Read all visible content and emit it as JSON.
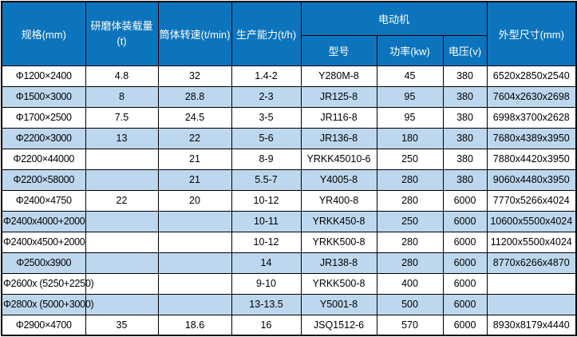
{
  "colors": {
    "header_bg": "#0c74bd",
    "header_text": "#ffffff",
    "alt_row_bg": "#bdd7ee",
    "border": "#000000",
    "body_text": "#000000"
  },
  "table": {
    "header": {
      "spec": "规格(mm)",
      "load": "研磨体装载量\n(t)",
      "speed": "筒体转速(t/min)",
      "capacity": "生产能力(t/h)",
      "motor_group": "电动机",
      "model": "型号",
      "power": "功率(kw)",
      "voltage": "电压(v)",
      "dimensions": "外型尺寸(mm)"
    },
    "rows": [
      {
        "spec": "Φ1200×2400",
        "load": "4.8",
        "speed": "32",
        "capacity": "1.4-2",
        "model": "Y280M-8",
        "power": "45",
        "voltage": "380",
        "dimensions": "6520x2850x2540"
      },
      {
        "spec": "Φ1500×3000",
        "load": "8",
        "speed": "28.8",
        "capacity": "2-3",
        "model": "JR125-8",
        "power": "95",
        "voltage": "380",
        "dimensions": "7604x2630x2698"
      },
      {
        "spec": "Φ1700×2500",
        "load": "7.5",
        "speed": "24.5",
        "capacity": "3-5",
        "model": "JR116-8",
        "power": "95",
        "voltage": "380",
        "dimensions": "6998x3700x2628"
      },
      {
        "spec": "Φ2200×3000",
        "load": "13",
        "speed": "22",
        "capacity": "5-6",
        "model": "JR136-8",
        "power": "180",
        "voltage": "380",
        "dimensions": "7680x4389x3950"
      },
      {
        "spec": "Φ2200×44000",
        "load": "",
        "speed": "21",
        "capacity": "8-9",
        "model": "YRKK45010-6",
        "power": "250",
        "voltage": "380",
        "dimensions": "7880x4420x3950"
      },
      {
        "spec": "Φ2200×58000",
        "load": "",
        "speed": "21",
        "capacity": "5.5-7",
        "model": "Y4005-8",
        "power": "280",
        "voltage": "380",
        "dimensions": "9060x4480x3950"
      },
      {
        "spec": "Φ2400×4750",
        "load": "22",
        "speed": "20",
        "capacity": "10-12",
        "model": "YR400-8",
        "power": "280",
        "voltage": "6000",
        "dimensions": "7770x5266x4024"
      },
      {
        "spec": "Φ2400x4000+2000",
        "load": "",
        "speed": "",
        "capacity": "10-11",
        "model": "YRKK450-8",
        "power": "250",
        "voltage": "6000",
        "dimensions": "10600x5500x4024"
      },
      {
        "spec": "Φ2400x4500+2000",
        "load": "",
        "speed": "",
        "capacity": "10-12",
        "model": "YRKK500-8",
        "power": "280",
        "voltage": "6000",
        "dimensions": "11200x5500x4024"
      },
      {
        "spec": "Φ2500x3900",
        "load": "",
        "speed": "",
        "capacity": "14",
        "model": "JR138-8",
        "power": "280",
        "voltage": "6000",
        "dimensions": "8770x6266x4870"
      },
      {
        "spec": "Φ2600x (5250+2250)",
        "load": "",
        "speed": "",
        "capacity": "9-10",
        "model": "YRKK500-8",
        "power": "400",
        "voltage": "6000",
        "dimensions": ""
      },
      {
        "spec": "Φ2800x (5000+3000)",
        "load": "",
        "speed": "",
        "capacity": "13-13.5",
        "model": "Y5001-8",
        "power": "500",
        "voltage": "6000",
        "dimensions": ""
      },
      {
        "spec": "Φ2900×4700",
        "load": "35",
        "speed": "18.6",
        "capacity": "16",
        "model": "JSQ1512-6",
        "power": "570",
        "voltage": "6000",
        "dimensions": "8930x8179x4440"
      }
    ]
  }
}
